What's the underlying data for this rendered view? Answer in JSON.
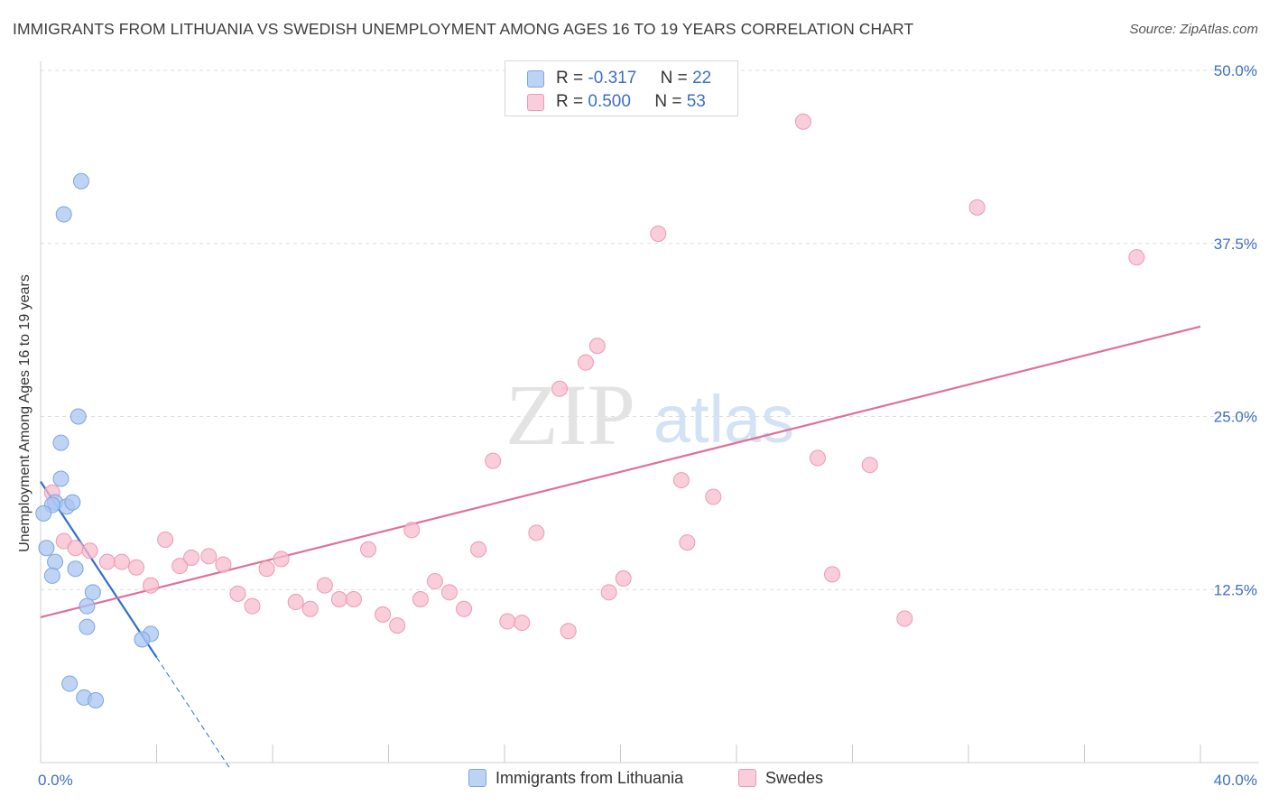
{
  "title": "IMMIGRANTS FROM LITHUANIA VS SWEDISH UNEMPLOYMENT AMONG AGES 16 TO 19 YEARS CORRELATION CHART",
  "source": "Source: ZipAtlas.com",
  "watermark": {
    "zip": "ZIP",
    "atlas": "atlas"
  },
  "legend": {
    "r_label": "R =",
    "n_label": "N =",
    "items": [
      {
        "r": "-0.317",
        "n": "22"
      },
      {
        "r": "0.500",
        "n": "53"
      }
    ]
  },
  "chart_data": {
    "type": "scatter",
    "xlabel": "",
    "ylabel": "Unemployment Among Ages 16 to 19 years",
    "xlim": [
      0,
      40
    ],
    "ylim": [
      0,
      50
    ],
    "x_tick_labels": [
      {
        "value": 0,
        "label": "0.0%"
      },
      {
        "value": 40,
        "label": "40.0%"
      }
    ],
    "y_tick_labels": [
      {
        "value": 12.5,
        "label": "12.5%"
      },
      {
        "value": 25,
        "label": "25.0%"
      },
      {
        "value": 37.5,
        "label": "37.5%"
      },
      {
        "value": 50,
        "label": "50.0%"
      }
    ],
    "grid": true,
    "legend_position": "top-center",
    "series": [
      {
        "name": "Immigrants from Lithuania",
        "color": "#a9c6f0",
        "stroke": "#7aa6e0",
        "trend_color": "#2f6fcc",
        "trend": {
          "x0": 0,
          "y0": 20.3,
          "x1": 4.0,
          "y1": 7.6,
          "dashed_to_x": 6.5
        },
        "points": [
          [
            1.4,
            42.0
          ],
          [
            0.8,
            39.6
          ],
          [
            1.3,
            25.0
          ],
          [
            0.7,
            23.1
          ],
          [
            0.7,
            20.5
          ],
          [
            0.5,
            18.8
          ],
          [
            0.9,
            18.5
          ],
          [
            0.4,
            18.6
          ],
          [
            1.1,
            18.8
          ],
          [
            0.1,
            18.0
          ],
          [
            0.2,
            15.5
          ],
          [
            0.5,
            14.5
          ],
          [
            1.2,
            14.0
          ],
          [
            0.4,
            13.5
          ],
          [
            1.8,
            12.3
          ],
          [
            1.6,
            11.3
          ],
          [
            1.6,
            9.8
          ],
          [
            3.8,
            9.3
          ],
          [
            3.5,
            8.9
          ],
          [
            1.0,
            5.7
          ],
          [
            1.5,
            4.7
          ],
          [
            1.9,
            4.5
          ]
        ]
      },
      {
        "name": "Swedes",
        "color": "#f7bccd",
        "stroke": "#ee99b3",
        "trend_color": "#e06f9a",
        "trend": {
          "x0": 0,
          "y0": 10.5,
          "x1": 40,
          "y1": 31.5
        },
        "points": [
          [
            0.4,
            19.5
          ],
          [
            0.8,
            16.0
          ],
          [
            1.2,
            15.5
          ],
          [
            1.7,
            15.3
          ],
          [
            2.3,
            14.5
          ],
          [
            2.8,
            14.5
          ],
          [
            3.3,
            14.1
          ],
          [
            3.8,
            12.8
          ],
          [
            4.3,
            16.1
          ],
          [
            4.8,
            14.2
          ],
          [
            5.2,
            14.8
          ],
          [
            5.8,
            14.9
          ],
          [
            6.3,
            14.3
          ],
          [
            6.8,
            12.2
          ],
          [
            7.3,
            11.3
          ],
          [
            7.8,
            14.0
          ],
          [
            8.3,
            14.7
          ],
          [
            8.8,
            11.6
          ],
          [
            9.3,
            11.1
          ],
          [
            9.8,
            12.8
          ],
          [
            10.3,
            11.8
          ],
          [
            10.8,
            11.8
          ],
          [
            11.3,
            15.4
          ],
          [
            11.8,
            10.7
          ],
          [
            12.3,
            9.9
          ],
          [
            12.8,
            16.8
          ],
          [
            13.1,
            11.8
          ],
          [
            13.6,
            13.1
          ],
          [
            14.1,
            12.3
          ],
          [
            14.6,
            11.1
          ],
          [
            15.1,
            15.4
          ],
          [
            15.6,
            21.8
          ],
          [
            16.1,
            10.2
          ],
          [
            16.6,
            10.1
          ],
          [
            17.1,
            16.6
          ],
          [
            17.9,
            27.0
          ],
          [
            18.2,
            9.5
          ],
          [
            18.8,
            28.9
          ],
          [
            19.2,
            30.1
          ],
          [
            19.6,
            12.3
          ],
          [
            20.1,
            13.3
          ],
          [
            21.3,
            38.2
          ],
          [
            21.8,
            50.0
          ],
          [
            22.1,
            20.4
          ],
          [
            22.3,
            15.9
          ],
          [
            23.2,
            19.2
          ],
          [
            26.3,
            46.3
          ],
          [
            26.8,
            22.0
          ],
          [
            27.3,
            13.6
          ],
          [
            28.6,
            21.5
          ],
          [
            29.8,
            10.4
          ],
          [
            32.3,
            40.1
          ],
          [
            37.8,
            36.5
          ]
        ]
      }
    ]
  }
}
